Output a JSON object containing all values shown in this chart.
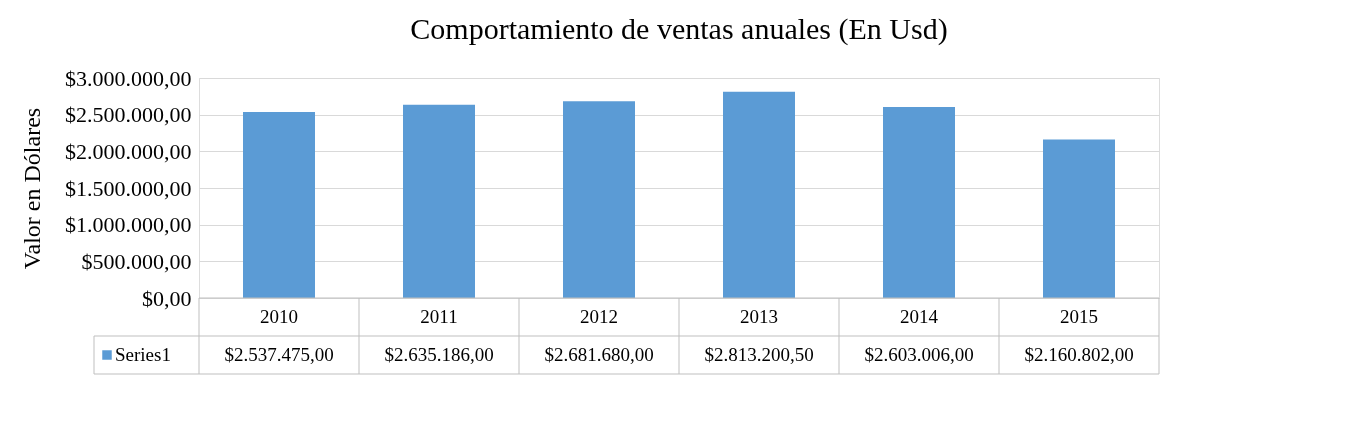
{
  "chart_data": {
    "type": "bar",
    "title": "Comportamiento de ventas anuales (En Usd)",
    "ylabel": "Valor en Dólares",
    "categories": [
      "2010",
      "2011",
      "2012",
      "2013",
      "2014",
      "2015"
    ],
    "series": [
      {
        "name": "Series1",
        "color": "#5b9bd5",
        "values": [
          2537475.0,
          2635186.0,
          2681680.0,
          2813200.5,
          2603006.0,
          2160802.0
        ],
        "value_labels": [
          "$2.537.475,00",
          "$2.635.186,00",
          "$2.681.680,00",
          "$2.813.200,50",
          "$2.603.006,00",
          "$2.160.802,00"
        ]
      }
    ],
    "ylim": [
      0,
      3000000
    ],
    "yticks": [
      {
        "value": 0,
        "label": "$0,00"
      },
      {
        "value": 500000,
        "label": "$500.000,00"
      },
      {
        "value": 1000000,
        "label": "$1.000.000,00"
      },
      {
        "value": 1500000,
        "label": "$1.500.000,00"
      },
      {
        "value": 2000000,
        "label": "$2.000.000,00"
      },
      {
        "value": 2500000,
        "label": "$2.500.000,00"
      },
      {
        "value": 3000000,
        "label": "$3.000.000,00"
      }
    ],
    "grid": "y",
    "legend": "bottom"
  }
}
